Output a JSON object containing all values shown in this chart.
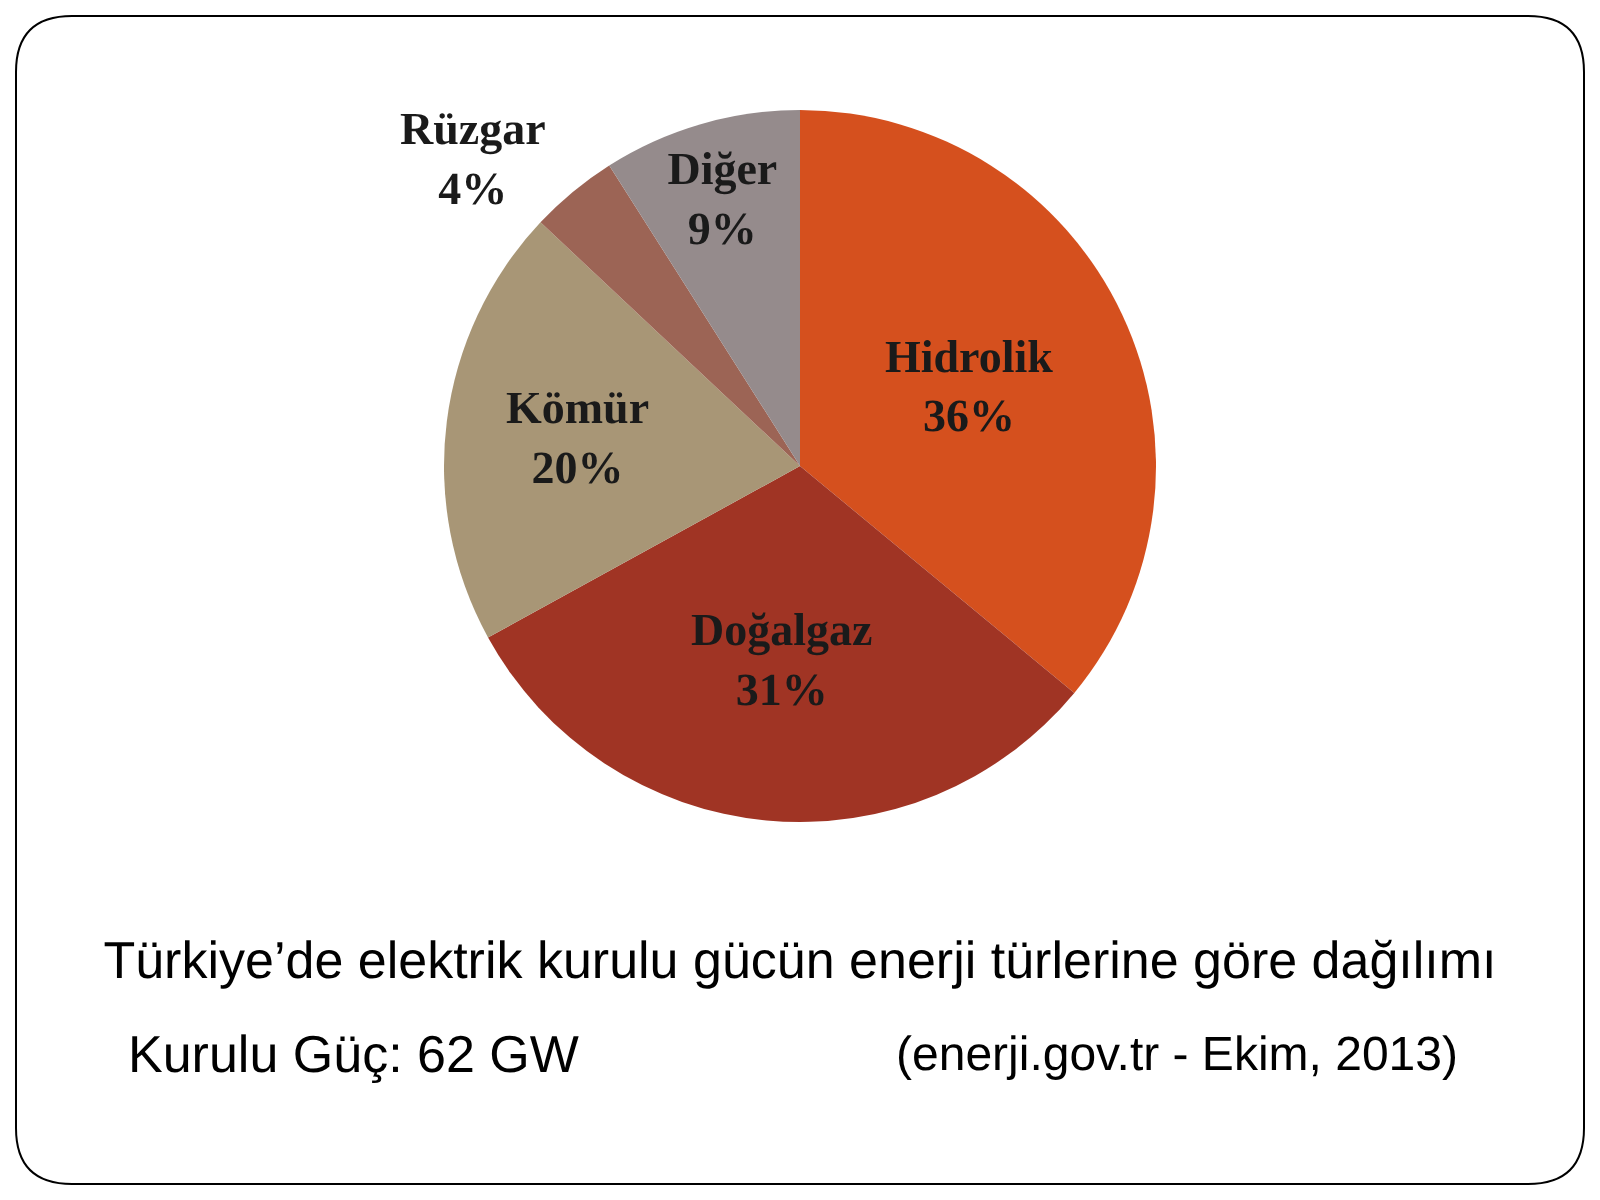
{
  "chart_data": {
    "type": "pie",
    "title": "Türkiye’de elektrik kurulu gücün enerji türlerine göre dağılımı",
    "categories": [
      "Hidrolik",
      "Doğalgaz",
      "Kömür",
      "Rüzgar",
      "Diğer"
    ],
    "values": [
      36,
      31,
      20,
      4,
      9
    ],
    "value_labels": [
      "36%",
      "31%",
      "20%",
      "4%",
      "9%"
    ],
    "colors": [
      "#d5501e",
      "#a03424",
      "#a89676",
      "#9c6455",
      "#958b8c"
    ],
    "annotations": [
      "Kurulu Güç: 62 GW",
      "(enerji.gov.tr - Ekim, 2013)"
    ]
  }
}
